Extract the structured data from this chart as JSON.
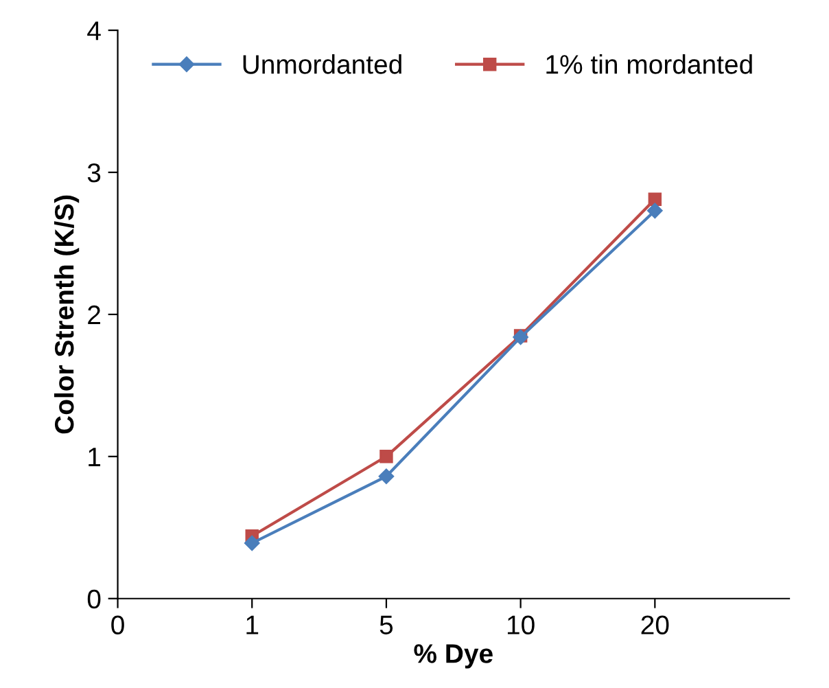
{
  "chart_data": {
    "type": "line",
    "xlabel": "% Dye",
    "ylabel": "Color Strenth (K/S)",
    "categories": [
      "0",
      "1",
      "5",
      "10",
      "20",
      null
    ],
    "series": [
      {
        "name": "Unmordanted",
        "color": "#4a7ebb",
        "marker": "diamond",
        "values": [
          null,
          0.39,
          0.86,
          1.84,
          2.73,
          null
        ]
      },
      {
        "name": "1% tin mordanted",
        "color": "#be4b48",
        "marker": "square",
        "values": [
          null,
          0.44,
          1.0,
          1.85,
          2.81,
          null
        ]
      }
    ],
    "ylim": [
      0,
      4
    ],
    "yticks": [
      0,
      1,
      2,
      3,
      4
    ],
    "grid": false,
    "legend": "top",
    "line_style": "solid"
  }
}
